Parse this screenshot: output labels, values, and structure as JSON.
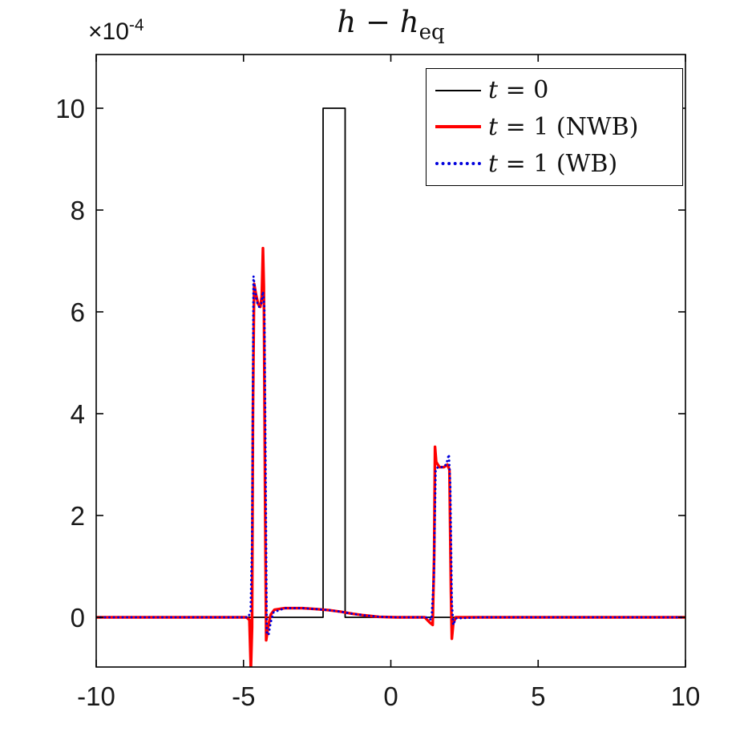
{
  "figure": {
    "title_parts": {
      "h1": "h",
      "minus": " − ",
      "h2": "h",
      "sub": "eq"
    },
    "y_offset": {
      "base": "×10",
      "exp": "-4"
    }
  },
  "legend": {
    "items": [
      {
        "var": "t",
        "rest": " = 0",
        "color": "#000000",
        "style": "solid",
        "width": 2
      },
      {
        "var": "t",
        "rest": " = 1 (NWB)",
        "color": "#ff0000",
        "style": "solid",
        "width": 4
      },
      {
        "var": "t",
        "rest": " = 1 (WB)",
        "color": "#0000dd",
        "style": "dotted",
        "width": 4
      }
    ]
  },
  "chart_data": {
    "type": "line",
    "title": "h - h_eq",
    "xlabel": "",
    "ylabel": "",
    "y_units_multiplier": "1e-4",
    "xlim": [
      -10,
      10
    ],
    "ylim": [
      -0.000105,
      0.001105
    ],
    "x_ticks": [
      "-10",
      "-5",
      "0",
      "5",
      "10"
    ],
    "y_ticks": [
      "0",
      "2",
      "4",
      "6",
      "8",
      "10"
    ],
    "y_tick_values_e4": [
      0,
      2,
      4,
      6,
      8,
      10
    ],
    "x_tick_values": [
      -10,
      -5,
      0,
      5,
      10
    ],
    "grid": false,
    "legend_position": "upper right",
    "series": [
      {
        "name": "t = 0",
        "color": "#000000",
        "width": 1.8,
        "dash": "solid",
        "points_x_ye4": [
          [
            -10,
            0
          ],
          [
            -2.3,
            0
          ],
          [
            -2.3,
            10
          ],
          [
            -1.55,
            10
          ],
          [
            -1.55,
            0
          ],
          [
            10,
            0
          ]
        ]
      },
      {
        "name": "t = 1 (NWB)",
        "color": "#ff0000",
        "width": 3.4,
        "dash": "solid",
        "points_x_ye4": [
          [
            -10,
            0
          ],
          [
            -4.9,
            0
          ],
          [
            -4.8,
            -0.05
          ],
          [
            -4.75,
            -1.05
          ],
          [
            -4.71,
            -0.2
          ],
          [
            -4.68,
            4.0
          ],
          [
            -4.64,
            6.55
          ],
          [
            -4.58,
            6.35
          ],
          [
            -4.5,
            6.15
          ],
          [
            -4.43,
            6.1
          ],
          [
            -4.38,
            6.3
          ],
          [
            -4.34,
            7.25
          ],
          [
            -4.31,
            6.5
          ],
          [
            -4.27,
            2.5
          ],
          [
            -4.23,
            -0.45
          ],
          [
            -4.17,
            -0.2
          ],
          [
            -4.08,
            0.05
          ],
          [
            -3.95,
            0.15
          ],
          [
            -3.6,
            0.18
          ],
          [
            -3.0,
            0.18
          ],
          [
            -2.5,
            0.16
          ],
          [
            -2.1,
            0.14
          ],
          [
            -1.7,
            0.11
          ],
          [
            -1.3,
            0.07
          ],
          [
            -0.9,
            0.04
          ],
          [
            -0.4,
            0.01
          ],
          [
            0.2,
            0
          ],
          [
            1.15,
            0
          ],
          [
            1.32,
            -0.1
          ],
          [
            1.42,
            -0.15
          ],
          [
            1.47,
            1.2
          ],
          [
            1.5,
            3.35
          ],
          [
            1.54,
            3.05
          ],
          [
            1.65,
            2.95
          ],
          [
            1.8,
            2.95
          ],
          [
            1.92,
            3.0
          ],
          [
            1.99,
            2.9
          ],
          [
            2.04,
            0.5
          ],
          [
            2.07,
            -0.42
          ],
          [
            2.12,
            -0.12
          ],
          [
            2.2,
            0
          ],
          [
            3.0,
            0
          ],
          [
            10,
            0
          ]
        ]
      },
      {
        "name": "t = 1 (WB)",
        "color": "#0000dd",
        "width": 2.9,
        "dash": "dotted",
        "points_x_ye4": [
          [
            -10,
            0
          ],
          [
            -4.85,
            0
          ],
          [
            -4.76,
            0.1
          ],
          [
            -4.71,
            1.5
          ],
          [
            -4.66,
            6.7
          ],
          [
            -4.61,
            6.45
          ],
          [
            -4.55,
            6.2
          ],
          [
            -4.47,
            6.1
          ],
          [
            -4.4,
            6.15
          ],
          [
            -4.34,
            6.4
          ],
          [
            -4.29,
            6.1
          ],
          [
            -4.25,
            3.0
          ],
          [
            -4.21,
            -0.3
          ],
          [
            -4.15,
            -0.35
          ],
          [
            -4.08,
            -0.1
          ],
          [
            -3.98,
            0.1
          ],
          [
            -3.6,
            0.18
          ],
          [
            -3.0,
            0.18
          ],
          [
            -2.5,
            0.16
          ],
          [
            -2.1,
            0.14
          ],
          [
            -1.7,
            0.11
          ],
          [
            -1.3,
            0.07
          ],
          [
            -0.9,
            0.04
          ],
          [
            -0.4,
            0.01
          ],
          [
            0.2,
            0
          ],
          [
            1.2,
            0
          ],
          [
            1.38,
            -0.05
          ],
          [
            1.46,
            0.8
          ],
          [
            1.52,
            2.9
          ],
          [
            1.6,
            2.95
          ],
          [
            1.75,
            2.95
          ],
          [
            1.88,
            3.0
          ],
          [
            1.97,
            3.2
          ],
          [
            2.02,
            2.6
          ],
          [
            2.07,
            0.3
          ],
          [
            2.12,
            -0.15
          ],
          [
            2.2,
            -0.02
          ],
          [
            3.0,
            0
          ],
          [
            10,
            0
          ]
        ]
      }
    ]
  }
}
